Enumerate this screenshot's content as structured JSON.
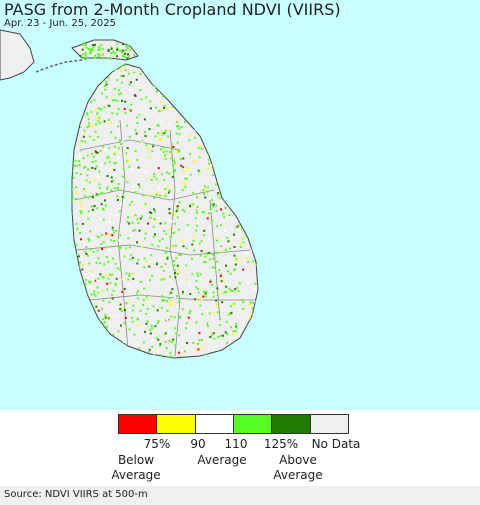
{
  "title": "PASG from 2-Month Cropland NDVI (VIIRS)",
  "date_range": "Apr. 23 - Jun. 25, 2025",
  "colors": {
    "ocean": "#c8ffff",
    "land": "#efefef",
    "border": "#444444",
    "outside_land": "#ffffff"
  },
  "legend": {
    "swatches": [
      "#ff0000",
      "#ffff00",
      "#ffffff",
      "#55ff22",
      "#227a00",
      "#efefef"
    ],
    "ticks": [
      "75%",
      "90",
      "110",
      "125%",
      "No Data"
    ],
    "below": [
      "Below",
      "Average"
    ],
    "average": "Average",
    "above": [
      "Above",
      "Average"
    ]
  },
  "source": "Source: NDVI VIIRS at 500-m"
}
